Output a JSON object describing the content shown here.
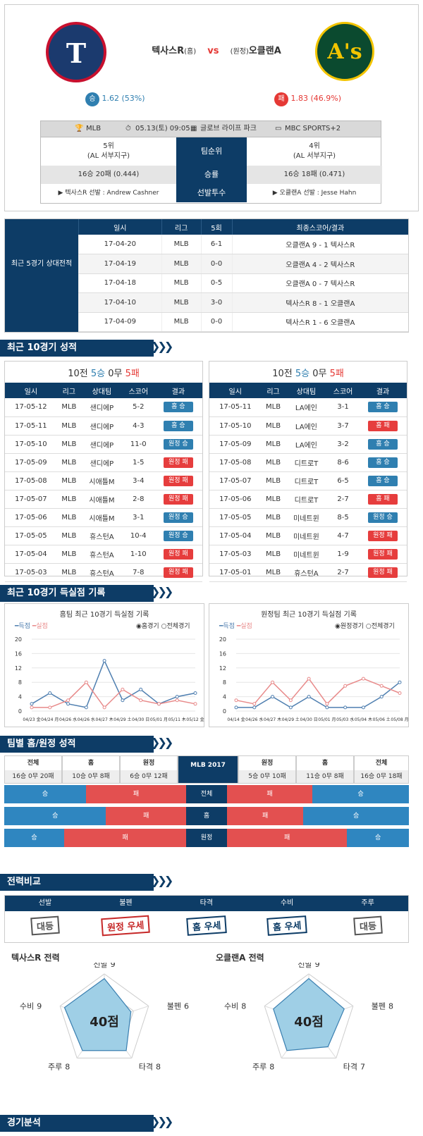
{
  "match": {
    "home": "텍사스R",
    "home_tag": "(홈)",
    "vs": "vs",
    "away_tag": "(원정)",
    "away": "오클랜A",
    "home_odds_label": "승",
    "home_odds": "1.62 (53%)",
    "away_odds_label": "패",
    "away_odds": "1.83 (46.9%)",
    "league": "MLB",
    "datetime": "05.13(토) 09:05",
    "stadium": "글로브 라이프 파크",
    "tv": "MBC SPORTS+2",
    "home_rank": "5위",
    "home_div": "(AL 서부지구)",
    "rank_label": "팀순위",
    "away_rank": "4위",
    "away_div": "(AL 서부지구)",
    "home_record": "16승 20패 (0.444)",
    "record_label": "승률",
    "away_record": "16승 18패 (0.471)",
    "home_pitcher": "▶ 텍사스R 선발 : Andrew Cashner",
    "pitcher_label": "선발투수",
    "away_pitcher": "▶ 오클랜A 선발 : Jesse Hahn"
  },
  "h2h": {
    "side_label": "최근 5경기 상대전적",
    "headers": [
      "일시",
      "리그",
      "5회",
      "최종스코어/결과"
    ],
    "rows": [
      [
        "17-04-20",
        "MLB",
        "6-1",
        "오클랜A 9 - 1 텍사스R"
      ],
      [
        "17-04-19",
        "MLB",
        "0-0",
        "오클랜A 4 - 2 텍사스R"
      ],
      [
        "17-04-18",
        "MLB",
        "0-5",
        "오클랜A 0 - 7 텍사스R"
      ],
      [
        "17-04-10",
        "MLB",
        "3-0",
        "텍사스R 8 - 1 오클랜A"
      ],
      [
        "17-04-09",
        "MLB",
        "0-0",
        "텍사스R 1 - 6 오클랜A"
      ]
    ]
  },
  "sec1": "최근 10경기 성적",
  "recent": {
    "headers": [
      "일시",
      "리그",
      "상대팀",
      "스코어",
      "결과"
    ],
    "home_summary": {
      "a": "10전 ",
      "w": "5승",
      "d": " 0무 ",
      "l": "5패"
    },
    "away_summary": {
      "a": "10전 ",
      "w": "5승",
      "d": " 0무 ",
      "l": "5패"
    },
    "home_rows": [
      [
        "17-05-12",
        "MLB",
        "샌디에P",
        "5-2",
        "홈 승",
        "blue"
      ],
      [
        "17-05-11",
        "MLB",
        "샌디에P",
        "4-3",
        "홈 승",
        "blue"
      ],
      [
        "17-05-10",
        "MLB",
        "샌디에P",
        "11-0",
        "원정 승",
        "blue"
      ],
      [
        "17-05-09",
        "MLB",
        "샌디에P",
        "1-5",
        "원정 패",
        "red"
      ],
      [
        "17-05-08",
        "MLB",
        "시애틀M",
        "3-4",
        "원정 패",
        "red"
      ],
      [
        "17-05-07",
        "MLB",
        "시애틀M",
        "2-8",
        "원정 패",
        "red"
      ],
      [
        "17-05-06",
        "MLB",
        "시애틀M",
        "3-1",
        "원정 승",
        "blue"
      ],
      [
        "17-05-05",
        "MLB",
        "휴스턴A",
        "10-4",
        "원정 승",
        "blue"
      ],
      [
        "17-05-04",
        "MLB",
        "휴스턴A",
        "1-10",
        "원정 패",
        "red"
      ],
      [
        "17-05-03",
        "MLB",
        "휴스턴A",
        "7-8",
        "원정 패",
        "red"
      ]
    ],
    "away_rows": [
      [
        "17-05-11",
        "MLB",
        "LA에인",
        "3-1",
        "홈 승",
        "blue"
      ],
      [
        "17-05-10",
        "MLB",
        "LA에인",
        "3-7",
        "홈 패",
        "red"
      ],
      [
        "17-05-09",
        "MLB",
        "LA에인",
        "3-2",
        "홈 승",
        "blue"
      ],
      [
        "17-05-08",
        "MLB",
        "디트로T",
        "8-6",
        "홈 승",
        "blue"
      ],
      [
        "17-05-07",
        "MLB",
        "디트로T",
        "6-5",
        "홈 승",
        "blue"
      ],
      [
        "17-05-06",
        "MLB",
        "디트로T",
        "2-7",
        "홈 패",
        "red"
      ],
      [
        "17-05-05",
        "MLB",
        "미네트윈",
        "8-5",
        "원정 승",
        "blue"
      ],
      [
        "17-05-04",
        "MLB",
        "미네트윈",
        "4-7",
        "원정 패",
        "red"
      ],
      [
        "17-05-03",
        "MLB",
        "미네트윈",
        "1-9",
        "원정 패",
        "red"
      ],
      [
        "17-05-01",
        "MLB",
        "휴스턴A",
        "2-7",
        "원정 패",
        "red"
      ]
    ]
  },
  "sec2": "최근 10경기 득실점 기록",
  "chart_data": [
    {
      "type": "line",
      "title": "홈팀 최근 10경기 득실점 기록",
      "legend": [
        "득점",
        "실점"
      ],
      "radio": [
        "홈경기",
        "전체경기"
      ],
      "ylim": [
        0,
        20
      ],
      "yticks": [
        0,
        4,
        8,
        12,
        16,
        20
      ],
      "x": [
        "04/23 金",
        "04/24 月",
        "04/26 水",
        "04/26 水",
        "04/27 木",
        "04/29 土",
        "04/30 日",
        "05/01 月",
        "05/11 木",
        "05/12 金"
      ],
      "series": [
        {
          "name": "득점",
          "color": "#4f7fb0",
          "values": [
            2,
            5,
            2,
            1,
            14,
            3,
            6,
            2,
            4,
            5
          ]
        },
        {
          "name": "실점",
          "color": "#e88a8a",
          "values": [
            1,
            1,
            3,
            8,
            1,
            6,
            3,
            2,
            3,
            2
          ]
        }
      ]
    },
    {
      "type": "line",
      "title": "원정팀 최근 10경기 득실점 기록",
      "legend": [
        "득점",
        "실점"
      ],
      "radio": [
        "원정경기",
        "전체경기"
      ],
      "ylim": [
        0,
        20
      ],
      "yticks": [
        0,
        4,
        8,
        12,
        16,
        20
      ],
      "x": [
        "04/14 金",
        "04/26 水",
        "04/27 木",
        "04/29 土",
        "04/30 日",
        "05/01 月",
        "05/03 水",
        "05/04 木",
        "05/06 土",
        "05/08 月"
      ],
      "series": [
        {
          "name": "득점",
          "color": "#4f7fb0",
          "values": [
            1,
            1,
            4,
            1,
            4,
            1,
            1,
            1,
            4,
            8
          ]
        },
        {
          "name": "실점",
          "color": "#e88a8a",
          "values": [
            3,
            2,
            8,
            3,
            9,
            2,
            7,
            9,
            7,
            5
          ]
        }
      ]
    }
  ],
  "sec3": "팀별 홈/원정 성적",
  "homeaway": {
    "headers": [
      "전체",
      "홈",
      "원정",
      "MLB 2017",
      "원정",
      "홈",
      "전체"
    ],
    "values": [
      "16승 0무 20패",
      "10승 0무 8패",
      "6승 0무 12패",
      "",
      "5승 0무 10패",
      "11승 0무 8패",
      "16승 0무 18패"
    ],
    "bars": [
      {
        "label": "전체",
        "lw": "승",
        "ll": "패",
        "rl": "패",
        "rw": "승",
        "lwp": 45,
        "rlp": 47
      },
      {
        "label": "홈",
        "lw": "승",
        "ll": "패",
        "rl": "패",
        "rw": "승",
        "lwp": 56,
        "rlp": 42
      },
      {
        "label": "원정",
        "lw": "승",
        "ll": "패",
        "rl": "패",
        "rw": "승",
        "lwp": 33,
        "rlp": 66
      }
    ]
  },
  "sec4": "전력비교",
  "compare": {
    "headers": [
      "선발",
      "불펜",
      "타격",
      "수비",
      "주루"
    ],
    "values": [
      "대등",
      "원정 우세",
      "홈 우세",
      "홈 우세",
      "대등"
    ],
    "colors": [
      "#555",
      "#c62828",
      "#0d3c66",
      "#0d3c66",
      "#555"
    ]
  },
  "radar": [
    {
      "title": "텍사스R 전력",
      "score": "40점",
      "axes": [
        [
          "선발",
          "9"
        ],
        [
          "불펜",
          "6"
        ],
        [
          "타격",
          "8"
        ],
        [
          "주루",
          "8"
        ],
        [
          "수비",
          "9"
        ]
      ],
      "values": [
        9,
        6,
        8,
        8,
        9
      ]
    },
    {
      "title": "오클랜A 전력",
      "score": "40점",
      "axes": [
        [
          "선발",
          "9"
        ],
        [
          "불펜",
          "8"
        ],
        [
          "타격",
          "7"
        ],
        [
          "주루",
          "8"
        ],
        [
          "수비",
          "8"
        ]
      ],
      "values": [
        9,
        8,
        7,
        8,
        8
      ]
    }
  ],
  "sec5": "경기분석"
}
